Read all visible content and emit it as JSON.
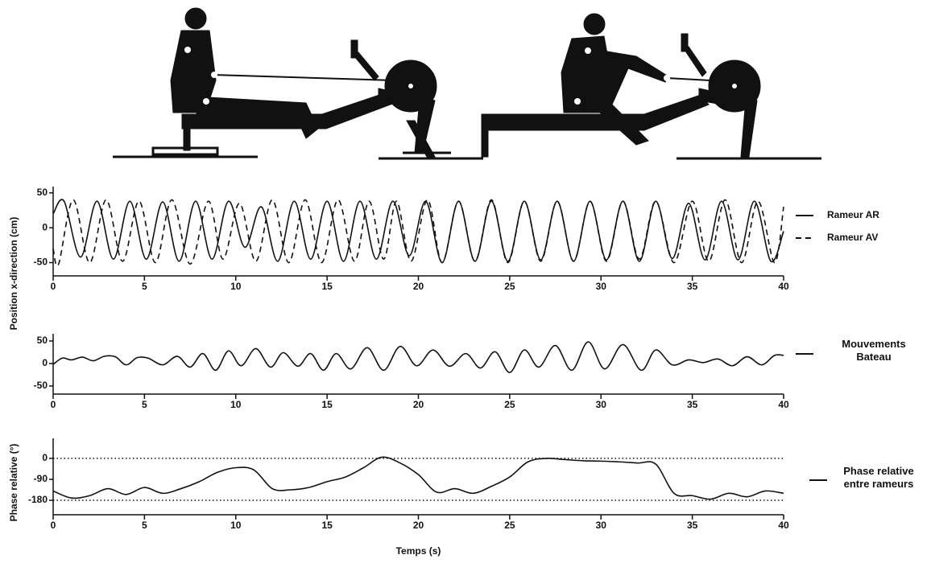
{
  "chart_data": [
    {
      "type": "line",
      "ylabel": "Position x-direction (cm)",
      "xlim": [
        0,
        40
      ],
      "ylim": [
        -69,
        59
      ],
      "xticks": [
        0,
        5,
        10,
        15,
        20,
        25,
        30,
        35,
        40
      ],
      "yticks": [
        50,
        0,
        -50
      ],
      "series": [
        {
          "name": "Rameur AR",
          "color": "#111111",
          "dash": false,
          "x": [
            0,
            0.6,
            1.5,
            2.4,
            3.3,
            4.2,
            5.1,
            6.0,
            6.9,
            7.8,
            8.7,
            9.6,
            10.5,
            11.4,
            12.3,
            13.2,
            14.1,
            15.0,
            15.9,
            16.8,
            17.7,
            18.6,
            19.5,
            20.4,
            21.3,
            22.2,
            23.1,
            24.0,
            24.9,
            25.8,
            26.7,
            27.6,
            28.5,
            29.4,
            30.3,
            31.2,
            32.1,
            33.0,
            33.9,
            34.8,
            35.7,
            36.6,
            37.5,
            38.4,
            39.3,
            40
          ],
          "values": [
            20,
            38,
            -42,
            38,
            -45,
            38,
            -45,
            37,
            -48,
            38,
            -45,
            38,
            -28,
            30,
            -48,
            38,
            -45,
            38,
            -48,
            38,
            -45,
            38,
            -40,
            38,
            -50,
            38,
            -48,
            38,
            -48,
            38,
            -46,
            38,
            -48,
            38,
            -46,
            38,
            -48,
            38,
            -44,
            35,
            -46,
            38,
            -46,
            38,
            -48,
            -5
          ]
        },
        {
          "name": "Rameur AV",
          "color": "#111111",
          "dash": true,
          "x": [
            0,
            0.3,
            1.1,
            2.0,
            2.9,
            3.8,
            4.7,
            5.6,
            6.5,
            7.5,
            8.5,
            9.3,
            10.2,
            11.1,
            12.0,
            12.9,
            13.8,
            14.7,
            15.6,
            16.5,
            17.3,
            18.1,
            18.8,
            19.6,
            20.5,
            21.3,
            22.2,
            23.1,
            24.0,
            24.9,
            25.8,
            26.7,
            27.6,
            28.5,
            29.4,
            30.3,
            31.2,
            32.1,
            33.0,
            34.0,
            35.0,
            35.9,
            36.8,
            37.7,
            38.6,
            39.5,
            40
          ],
          "values": [
            -30,
            -52,
            40,
            -50,
            40,
            -48,
            38,
            -50,
            40,
            -52,
            38,
            -45,
            35,
            -48,
            40,
            -50,
            40,
            -50,
            40,
            -48,
            38,
            -45,
            38,
            -48,
            40,
            -50,
            38,
            -48,
            40,
            -50,
            38,
            -48,
            38,
            -48,
            38,
            -48,
            38,
            -45,
            38,
            -50,
            38,
            -48,
            40,
            -50,
            38,
            -50,
            30
          ]
        }
      ]
    },
    {
      "type": "line",
      "xlim": [
        0,
        40
      ],
      "ylim": [
        -68,
        66
      ],
      "xticks": [
        0,
        5,
        10,
        15,
        20,
        25,
        30,
        35,
        40
      ],
      "yticks": [
        50,
        0,
        -50
      ],
      "series": [
        {
          "name": "Mouvements Bateau",
          "color": "#111111",
          "dash": false,
          "x": [
            0,
            0.5,
            1.0,
            1.6,
            2.2,
            2.8,
            3.4,
            4.0,
            4.6,
            5.2,
            6.0,
            6.8,
            7.5,
            8.2,
            8.9,
            9.6,
            10.3,
            11.1,
            11.9,
            12.6,
            13.4,
            14.1,
            14.8,
            15.5,
            16.3,
            17.2,
            18.1,
            19.0,
            19.9,
            20.8,
            21.7,
            22.6,
            23.4,
            24.2,
            25.0,
            25.8,
            26.6,
            27.5,
            28.4,
            29.3,
            30.2,
            31.2,
            32.2,
            33.0,
            33.9,
            34.8,
            35.6,
            36.4,
            37.2,
            38.0,
            38.8,
            39.5,
            40
          ],
          "values": [
            -2,
            12,
            8,
            14,
            6,
            16,
            15,
            -3,
            13,
            12,
            -3,
            16,
            -8,
            22,
            -15,
            28,
            -5,
            33,
            -8,
            24,
            -6,
            22,
            -15,
            22,
            -12,
            35,
            -15,
            38,
            -5,
            30,
            -6,
            22,
            -10,
            26,
            -20,
            30,
            -8,
            40,
            -15,
            48,
            -12,
            42,
            -15,
            30,
            -3,
            8,
            2,
            10,
            -5,
            15,
            -3,
            18,
            18
          ]
        }
      ]
    },
    {
      "type": "line",
      "ylabel": "Phase relative (°)",
      "xlabel": "Temps (s)",
      "xlim": [
        0,
        40
      ],
      "ylim": [
        -242,
        86
      ],
      "xticks": [
        0,
        5,
        10,
        15,
        20,
        25,
        30,
        35,
        40
      ],
      "yticks": [
        0,
        -90,
        -180
      ],
      "reference_lines": [
        0,
        -180
      ],
      "series": [
        {
          "name": "Phase relative entre rameurs",
          "color": "#111111",
          "dash": false,
          "x": [
            0,
            1,
            2,
            3,
            4,
            5,
            6,
            7,
            8,
            9,
            10,
            11,
            12,
            13,
            14,
            15,
            16,
            17,
            18,
            19,
            20,
            21,
            22,
            23,
            24,
            25,
            26,
            27,
            28,
            29,
            30,
            31,
            32,
            33,
            34,
            35,
            36,
            37,
            38,
            39,
            40
          ],
          "values": [
            -140,
            -170,
            -160,
            -130,
            -155,
            -125,
            -150,
            -130,
            -100,
            -60,
            -40,
            -50,
            -130,
            -135,
            -125,
            -100,
            -80,
            -40,
            5,
            -20,
            -70,
            -145,
            -130,
            -150,
            -120,
            -80,
            -15,
            0,
            -5,
            -10,
            -12,
            -15,
            -20,
            -25,
            -150,
            -160,
            -175,
            -150,
            -165,
            -140,
            -150
          ]
        }
      ]
    }
  ]
}
